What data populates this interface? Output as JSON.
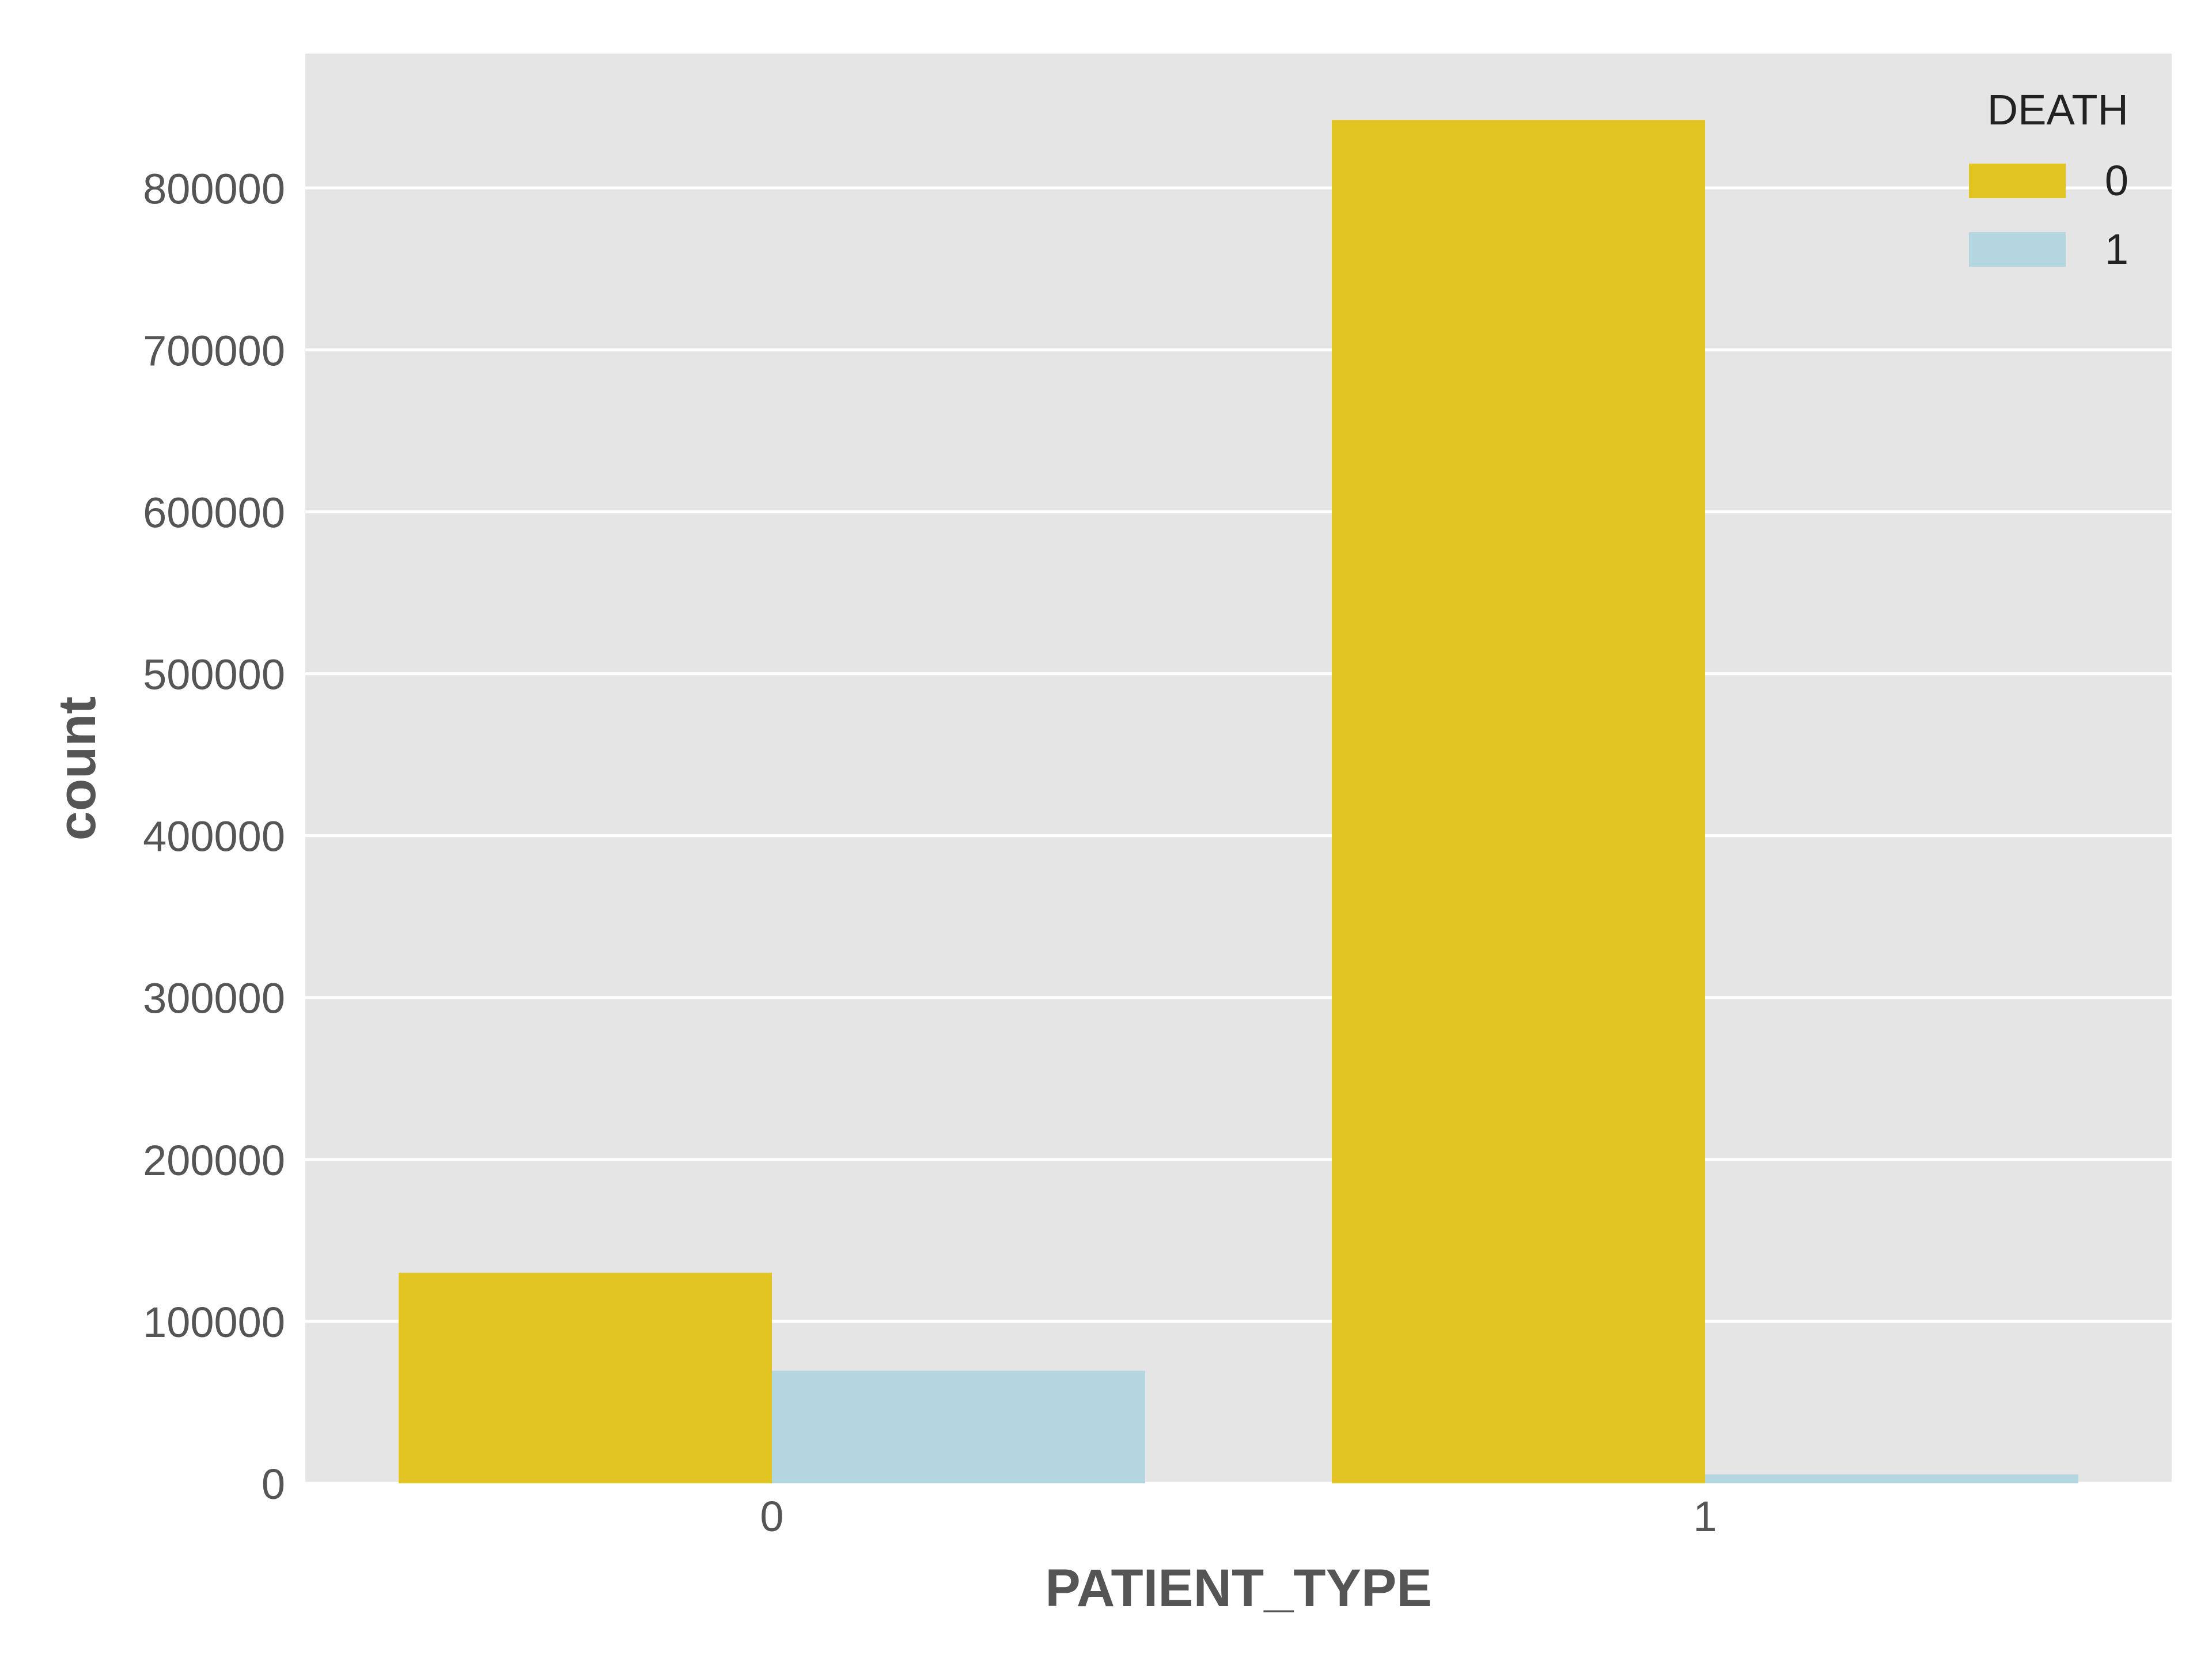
{
  "chart_data": {
    "type": "bar",
    "title": "",
    "xlabel": "PATIENT_TYPE",
    "ylabel": "count",
    "categories": [
      "0",
      "1"
    ],
    "series": [
      {
        "name": "0",
        "color": "#E1C322",
        "values": [
          130000,
          842000
        ]
      },
      {
        "name": "1",
        "color": "#B4D6E0",
        "values": [
          69500,
          5500
        ]
      }
    ],
    "ylim": [
      0,
      883000
    ],
    "yticks": [
      0,
      100000,
      200000,
      300000,
      400000,
      500000,
      600000,
      700000,
      800000
    ],
    "ytick_labels": [
      "0",
      "100000",
      "200000",
      "300000",
      "400000",
      "500000",
      "600000",
      "700000",
      "800000"
    ],
    "legend": {
      "title": "DEATH",
      "placement": "top-right",
      "entries": [
        "0",
        "1"
      ]
    },
    "grid": true,
    "background_color": "#E5E5E5",
    "grid_color": "#FFFFFF"
  }
}
